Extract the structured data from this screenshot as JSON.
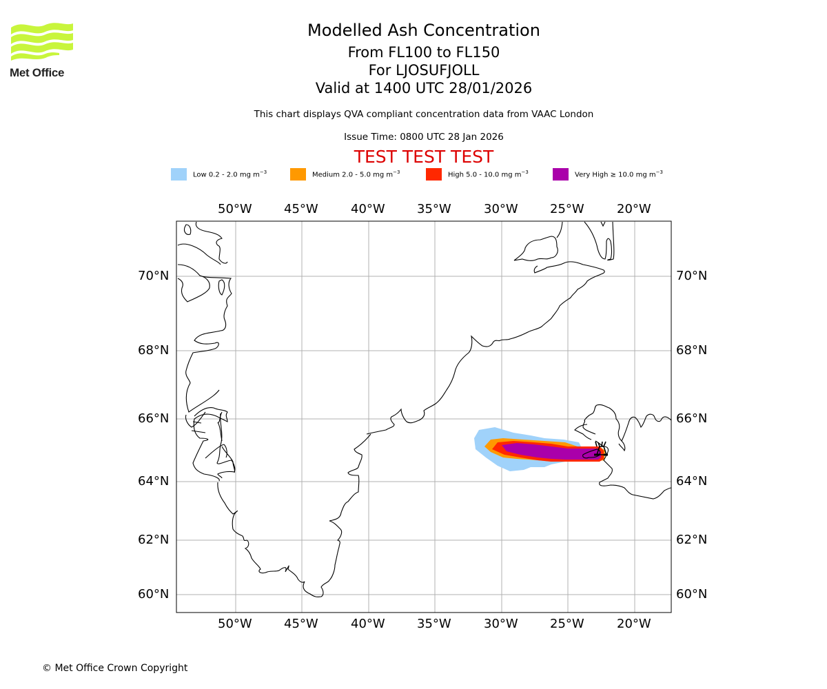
{
  "header": {
    "logo_text": "Met Office",
    "title": "Modelled Ash Concentration",
    "flight_levels": "From FL100 to FL150",
    "volcano": "For LJOSUFJOLL",
    "valid_time": "Valid at 1400 UTC 28/01/2026",
    "subtitle": "This chart displays QVA compliant concentration data from VAAC London",
    "issue_time": "Issue Time: 0800 UTC 28 Jan 2026",
    "test_banner": "TEST TEST TEST"
  },
  "legend": [
    {
      "label": "Low 0.2 - 2.0 mg m",
      "sup": "−3",
      "color": "#a0d2fa"
    },
    {
      "label": "Medium 2.0 - 5.0 mg m",
      "sup": "−3",
      "color": "#ff9900"
    },
    {
      "label": "High 5.0 - 10.0 mg m",
      "sup": "−3",
      "color": "#ff2800"
    },
    {
      "label": "Very High ≥ 10.0 mg m",
      "sup": "−3",
      "color": "#aa00aa"
    }
  ],
  "map": {
    "lon_ticks": [
      "50°W",
      "45°W",
      "40°W",
      "35°W",
      "30°W",
      "25°W",
      "20°W"
    ],
    "lat_ticks": [
      "70°N",
      "68°N",
      "66°N",
      "64°N",
      "62°N",
      "60°N"
    ],
    "lon_values": [
      -50,
      -45,
      -40,
      -35,
      -30,
      -25,
      -20
    ],
    "lat_values": [
      70,
      68,
      66,
      64,
      62,
      60
    ],
    "extent": {
      "lon_min": -54.5,
      "lon_max": -17.3,
      "lat_min": 59.5,
      "lat_max": 71.6
    },
    "volcano_marker": {
      "name": "LJOSUFJOLL",
      "lon": -22.6,
      "lat": 64.9,
      "icon": "volcano-icon"
    },
    "colors": {
      "grid": "#b0b0b0",
      "coast": "#000000",
      "frame": "#000000"
    }
  },
  "footer": {
    "copyright": "© Met Office Crown Copyright"
  }
}
